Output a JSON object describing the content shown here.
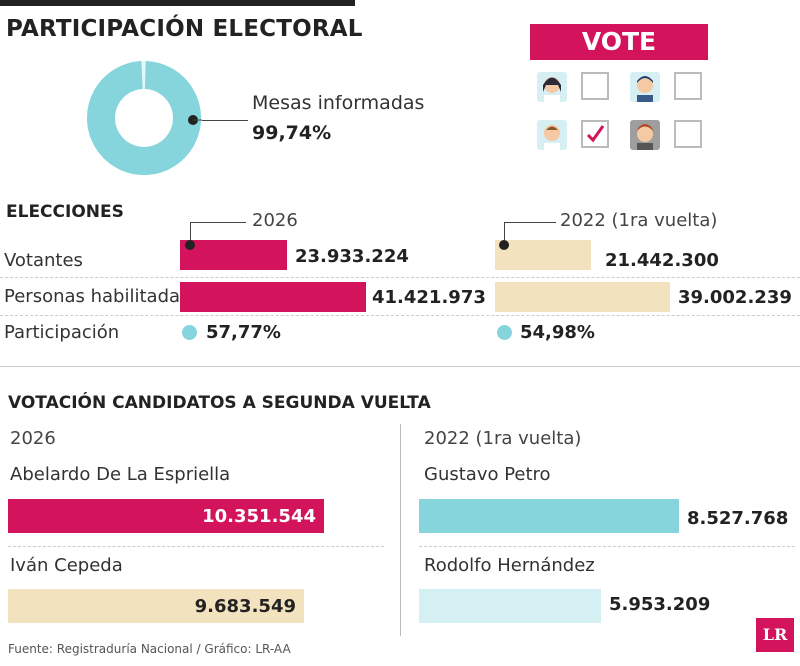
{
  "title": "PARTICIPACIÓN ELECTORAL",
  "mesas": {
    "label": "Mesas informadas",
    "value_text": "99,74%",
    "value": 99.74
  },
  "vote_banner": "VOTE",
  "elecciones": {
    "heading": "ELECCIONES",
    "year_a": "2026",
    "year_b": "2022 (1ra vuelta)",
    "rows": [
      {
        "label": "Votantes",
        "a_text": "23.933.224",
        "a": 23933224,
        "b_text": "21.442.300",
        "b": 21442300
      },
      {
        "label": "Personas habilitadas",
        "a_text": "41.421.973",
        "a": 41421973,
        "b_text": "39.002.239",
        "b": 39002239
      },
      {
        "label": "Participación",
        "a_text": "57,77%",
        "b_text": "54,98%"
      }
    ]
  },
  "candidatos": {
    "heading": "VOTACIÓN CANDIDATOS A SEGUNDA VUELTA",
    "left_year": "2026",
    "right_year": "2022 (1ra vuelta)",
    "left": [
      {
        "name": "Abelardo De La Espriella",
        "value_text": "10.351.544",
        "value": 10351544
      },
      {
        "name": "Iván Cepeda",
        "value_text": "9.683.549",
        "value": 9683549
      }
    ],
    "right": [
      {
        "name": "Gustavo Petro",
        "value_text": "8.527.768",
        "value": 8527768
      },
      {
        "name": "Rodolfo Hernández",
        "value_text": "5.953.209",
        "value": 5953209
      }
    ]
  },
  "colors": {
    "accent_2026": "#d3145c",
    "beige_2022": "#f2e2bd",
    "teal": "#86d4dc",
    "teal_light": "#d4f0f3"
  },
  "footer": "Fuente: Registraduría Nacional / Gráfico: LR-AA",
  "logo_text": "LR",
  "chart_data": [
    {
      "type": "pie",
      "labels": [
        "Mesas informadas"
      ],
      "values": [
        99.74
      ]
    },
    {
      "type": "bar",
      "title": "ELECCIONES",
      "categories": [
        "Votantes",
        "Personas habilitadas"
      ],
      "series": [
        {
          "name": "2026",
          "values": [
            23933224,
            41421973
          ]
        },
        {
          "name": "2022 (1ra vuelta)",
          "values": [
            21442300,
            39002239
          ]
        }
      ],
      "participacion": {
        "2026": 57.77,
        "2022 (1ra vuelta)": 54.98
      }
    },
    {
      "type": "bar",
      "title": "VOTACIÓN CANDIDATOS A SEGUNDA VUELTA",
      "groups": [
        {
          "name": "2026",
          "categories": [
            "Abelardo De La Espriella",
            "Iván Cepeda"
          ],
          "values": [
            10351544,
            9683549
          ]
        },
        {
          "name": "2022 (1ra vuelta)",
          "categories": [
            "Gustavo Petro",
            "Rodolfo Hernández"
          ],
          "values": [
            8527768,
            5953209
          ]
        }
      ]
    }
  ]
}
